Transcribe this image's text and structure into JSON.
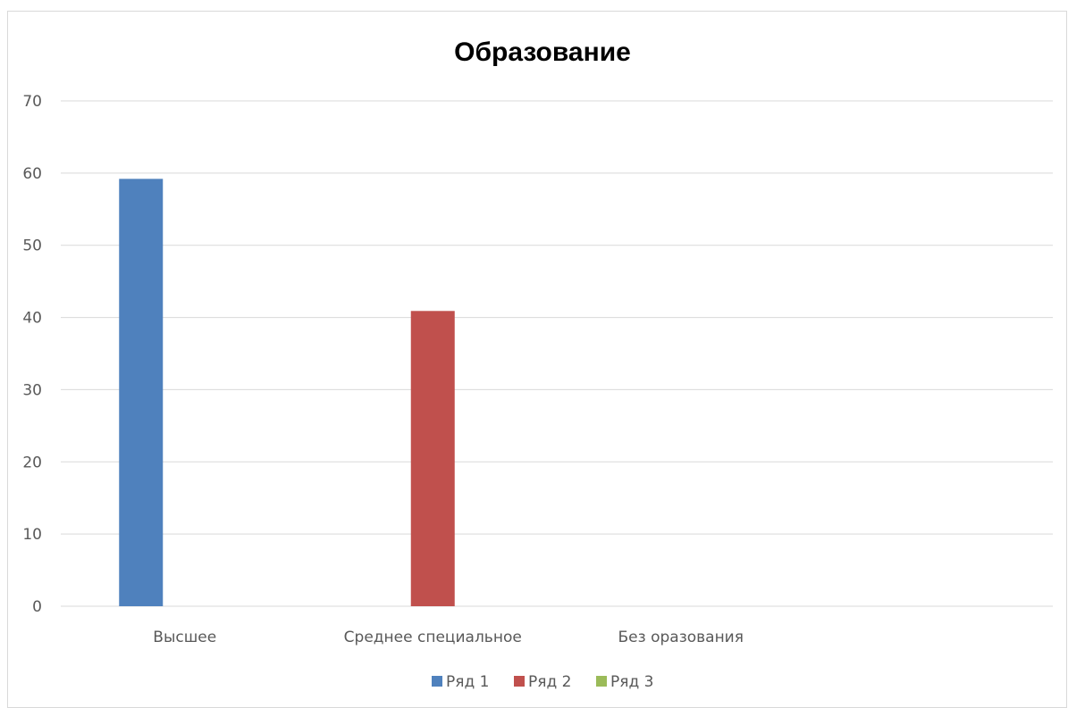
{
  "chart_data": {
    "type": "bar",
    "title": "Образование",
    "xlabel": "",
    "ylabel": "",
    "categories": [
      "Высшее",
      "Среднее специальное",
      "Без оразования"
    ],
    "series": [
      {
        "name": "Ряд 1",
        "color": "#4f81bd",
        "values": [
          59.2,
          0,
          0
        ]
      },
      {
        "name": "Ряд 2",
        "color": "#c0504d",
        "values": [
          0,
          40.9,
          0
        ]
      },
      {
        "name": "Ряд 3",
        "color": "#9bbb59",
        "values": [
          0,
          0,
          0
        ]
      }
    ],
    "ylim": [
      0,
      70
    ],
    "yticks": [
      0,
      10,
      20,
      30,
      40,
      50,
      60,
      70
    ],
    "grid": true,
    "legend_position": "bottom"
  }
}
